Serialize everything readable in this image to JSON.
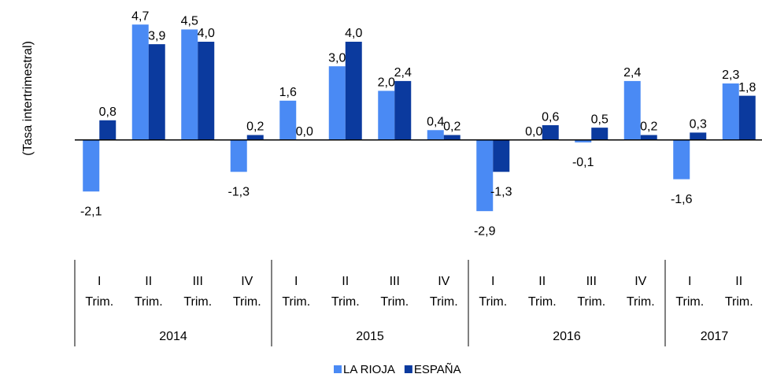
{
  "chart_data": {
    "type": "bar",
    "y_axis_label": "(Tasa intertrimestral)",
    "categories": [
      "I Trim.",
      "II Trim.",
      "III Trim.",
      "IV Trim.",
      "I Trim.",
      "II Trim.",
      "III Trim.",
      "IV Trim.",
      "I Trim.",
      "II Trim.",
      "III Trim.",
      "IV Trim.",
      "I Trim.",
      "II Trim."
    ],
    "groups": [
      {
        "label": "2014",
        "span": 4
      },
      {
        "label": "2015",
        "span": 4
      },
      {
        "label": "2016",
        "span": 4
      },
      {
        "label": "2017",
        "span": 2
      }
    ],
    "series": [
      {
        "name": "LA RIOJA",
        "color": "#4a8af4",
        "values": [
          -2.1,
          4.7,
          4.5,
          -1.3,
          1.6,
          3.0,
          2.0,
          0.4,
          -2.9,
          0.0,
          -0.1,
          2.4,
          -1.6,
          2.3
        ],
        "value_labels": [
          "-2,1",
          "4,7",
          "4,5",
          "-1,3",
          "1,6",
          "3,0",
          "2,0",
          "0,4",
          "-2,9",
          "0,0",
          "-0,1",
          "2,4",
          "-1,6",
          "2,3"
        ]
      },
      {
        "name": "ESPAÑA",
        "color": "#0b3a9e",
        "values": [
          0.8,
          3.9,
          4.0,
          0.2,
          0.0,
          4.0,
          2.4,
          0.2,
          -1.3,
          0.6,
          0.5,
          0.2,
          0.3,
          1.8
        ],
        "value_labels": [
          "0,8",
          "3,9",
          "4,0",
          "0,2",
          "0,0",
          "4,0",
          "2,4",
          "0,2",
          "-1,3",
          "0,6",
          "0,5",
          "0,2",
          "0,3",
          "1,8"
        ]
      }
    ],
    "ylim": [
      -3.6,
      5.7
    ],
    "legend": "bottom"
  }
}
